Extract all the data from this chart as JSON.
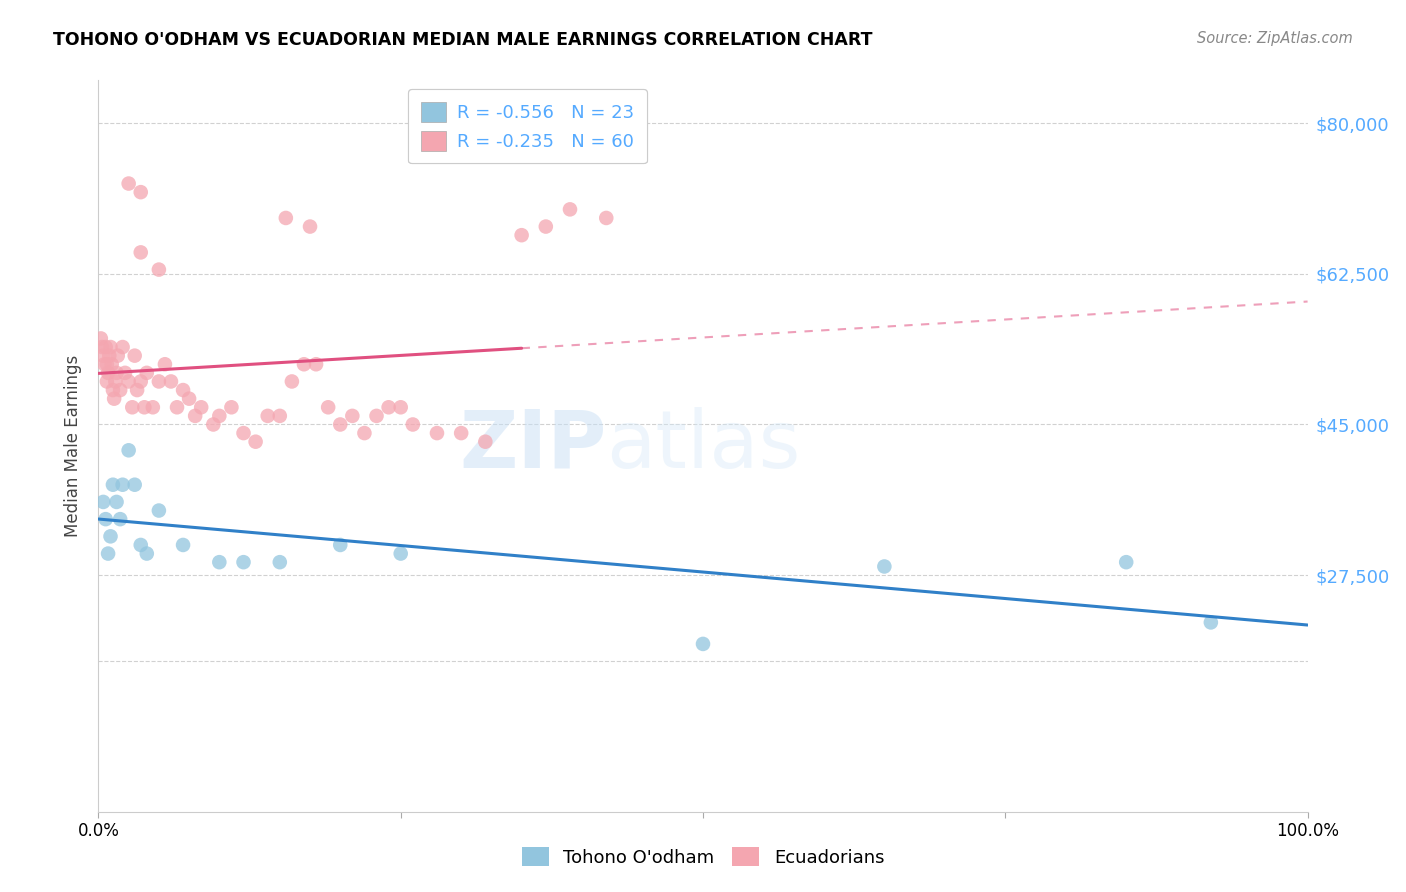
{
  "title": "TOHONO O'ODHAM VS ECUADORIAN MEDIAN MALE EARNINGS CORRELATION CHART",
  "source": "Source: ZipAtlas.com",
  "ylabel": "Median Male Earnings",
  "legend_blue_r": "-0.556",
  "legend_blue_n": "23",
  "legend_pink_r": "-0.235",
  "legend_pink_n": "60",
  "legend_label_blue": "Tohono O'odham",
  "legend_label_pink": "Ecuadorians",
  "blue_color": "#92c5de",
  "pink_color": "#f4a6b0",
  "blue_line_color": "#3080c8",
  "pink_line_color": "#e05080",
  "accent_color": "#55aaff",
  "watermark_zip": "ZIP",
  "watermark_atlas": "atlas",
  "blue_scatter_x": [
    0.4,
    0.6,
    0.8,
    1.0,
    1.2,
    1.5,
    1.8,
    2.0,
    2.5,
    3.0,
    3.5,
    4.0,
    5.0,
    7.0,
    10.0,
    12.0,
    15.0,
    20.0,
    25.0,
    50.0,
    65.0,
    85.0,
    92.0
  ],
  "blue_scatter_y": [
    36000,
    34000,
    30000,
    32000,
    38000,
    36000,
    34000,
    38000,
    42000,
    38000,
    31000,
    30000,
    35000,
    31000,
    29000,
    29000,
    29000,
    31000,
    30000,
    19500,
    28500,
    29000,
    22000
  ],
  "pink_scatter_x": [
    0.2,
    0.3,
    0.4,
    0.5,
    0.6,
    0.7,
    0.7,
    0.8,
    0.9,
    1.0,
    1.1,
    1.2,
    1.3,
    1.4,
    1.5,
    1.6,
    1.8,
    2.0,
    2.2,
    2.5,
    2.8,
    3.0,
    3.2,
    3.5,
    3.8,
    4.0,
    4.5,
    5.0,
    5.5,
    6.0,
    6.5,
    7.0,
    7.5,
    8.0,
    8.5,
    9.5,
    10.0,
    11.0,
    12.0,
    13.0,
    14.0,
    15.0,
    16.0,
    17.0,
    18.0,
    19.0,
    20.0,
    21.0,
    22.0,
    23.0,
    24.0,
    25.0,
    26.0,
    28.0,
    30.0,
    32.0,
    35.0,
    37.0,
    39.0,
    42.0
  ],
  "pink_scatter_y": [
    55000,
    54000,
    53000,
    52000,
    54000,
    52000,
    50000,
    51000,
    53000,
    54000,
    52000,
    49000,
    48000,
    50000,
    51000,
    53000,
    49000,
    54000,
    51000,
    50000,
    47000,
    53000,
    49000,
    50000,
    47000,
    51000,
    47000,
    50000,
    52000,
    50000,
    47000,
    49000,
    48000,
    46000,
    47000,
    45000,
    46000,
    47000,
    44000,
    43000,
    46000,
    46000,
    50000,
    52000,
    52000,
    47000,
    45000,
    46000,
    44000,
    46000,
    47000,
    47000,
    45000,
    44000,
    44000,
    43000,
    67000,
    68000,
    70000,
    69000
  ],
  "pink_high_x": [
    2.5,
    3.5,
    15.5,
    17.5,
    3.5,
    5.0
  ],
  "pink_high_y": [
    73000,
    72000,
    69000,
    68000,
    65000,
    63000
  ],
  "xlim": [
    0,
    100
  ],
  "ylim": [
    0,
    85000
  ],
  "ytick_positions": [
    17500,
    27500,
    45000,
    62500,
    80000
  ],
  "right_ytick_positions": [
    27500,
    45000,
    62500,
    80000
  ],
  "right_ytick_labels": [
    "$27,500",
    "$45,000",
    "$62,500",
    "$80,000"
  ],
  "background_color": "#ffffff",
  "grid_color": "#cccccc",
  "pink_solid_end": 35.0
}
